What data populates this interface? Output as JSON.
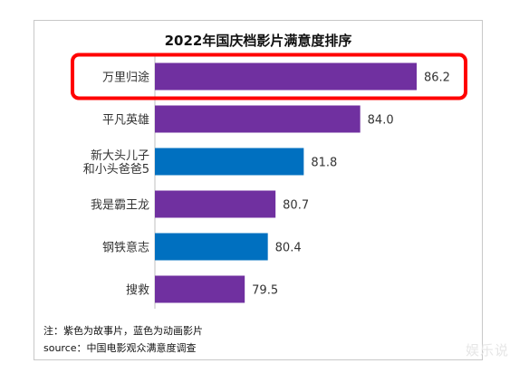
{
  "chart_data": {
    "type": "bar",
    "orientation": "horizontal",
    "title": "2022年国庆档影片满意度排序",
    "categories": [
      [
        "万里归途"
      ],
      [
        "平凡英雄"
      ],
      [
        "新大头儿子",
        "和小头爸爸5"
      ],
      [
        "我是霸王龙"
      ],
      [
        "钢铁意志"
      ],
      [
        "搜救"
      ]
    ],
    "values": [
      86.2,
      84.0,
      81.8,
      80.7,
      80.4,
      79.5
    ],
    "value_labels": [
      "86.2",
      "84.0",
      "81.8",
      "80.7",
      "80.4",
      "79.5"
    ],
    "bar_colors": [
      "#7030a0",
      "#7030a0",
      "#0070c0",
      "#7030a0",
      "#0070c0",
      "#7030a0"
    ],
    "xlim": [
      76.0,
      86.2
    ],
    "highlight_index": 0,
    "highlight_color": "#ff0000",
    "grid": false,
    "legend": "none",
    "notes": [
      "注：紫色为故事片，蓝色为动画影片",
      "source：中国电影观众满意度调查"
    ]
  },
  "watermark": "娱乐说"
}
